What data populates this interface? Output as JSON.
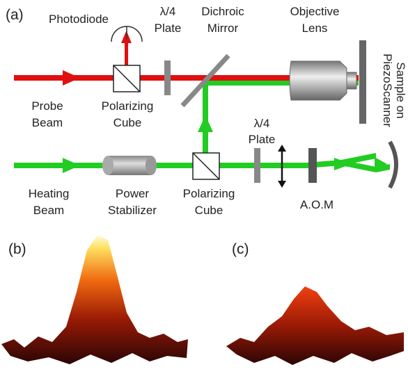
{
  "panel_a": {
    "label": "(a)",
    "photodiode": "Photodiode",
    "top_waveplate": [
      "λ/4",
      "Plate"
    ],
    "dichroic_mirror": [
      "Dichroic",
      "Mirror"
    ],
    "objective_lens": [
      "Objective",
      "Lens"
    ],
    "sample": [
      "Sample on",
      "PiezoScanner"
    ],
    "probe_beam": [
      "Probe",
      "Beam"
    ],
    "top_cube": [
      "Polarizing",
      "Cube"
    ],
    "bottom_waveplate": [
      "λ/4",
      "Plate"
    ],
    "heating_beam": [
      "Heating",
      "Beam"
    ],
    "power_stabilizer": [
      "Power",
      "Stabilizer"
    ],
    "bottom_cube": [
      "Polarizing",
      "Cube"
    ],
    "aom": "A.O.M"
  },
  "panel_b": {
    "label": "(b)"
  },
  "panel_c": {
    "label": "(c)"
  }
}
